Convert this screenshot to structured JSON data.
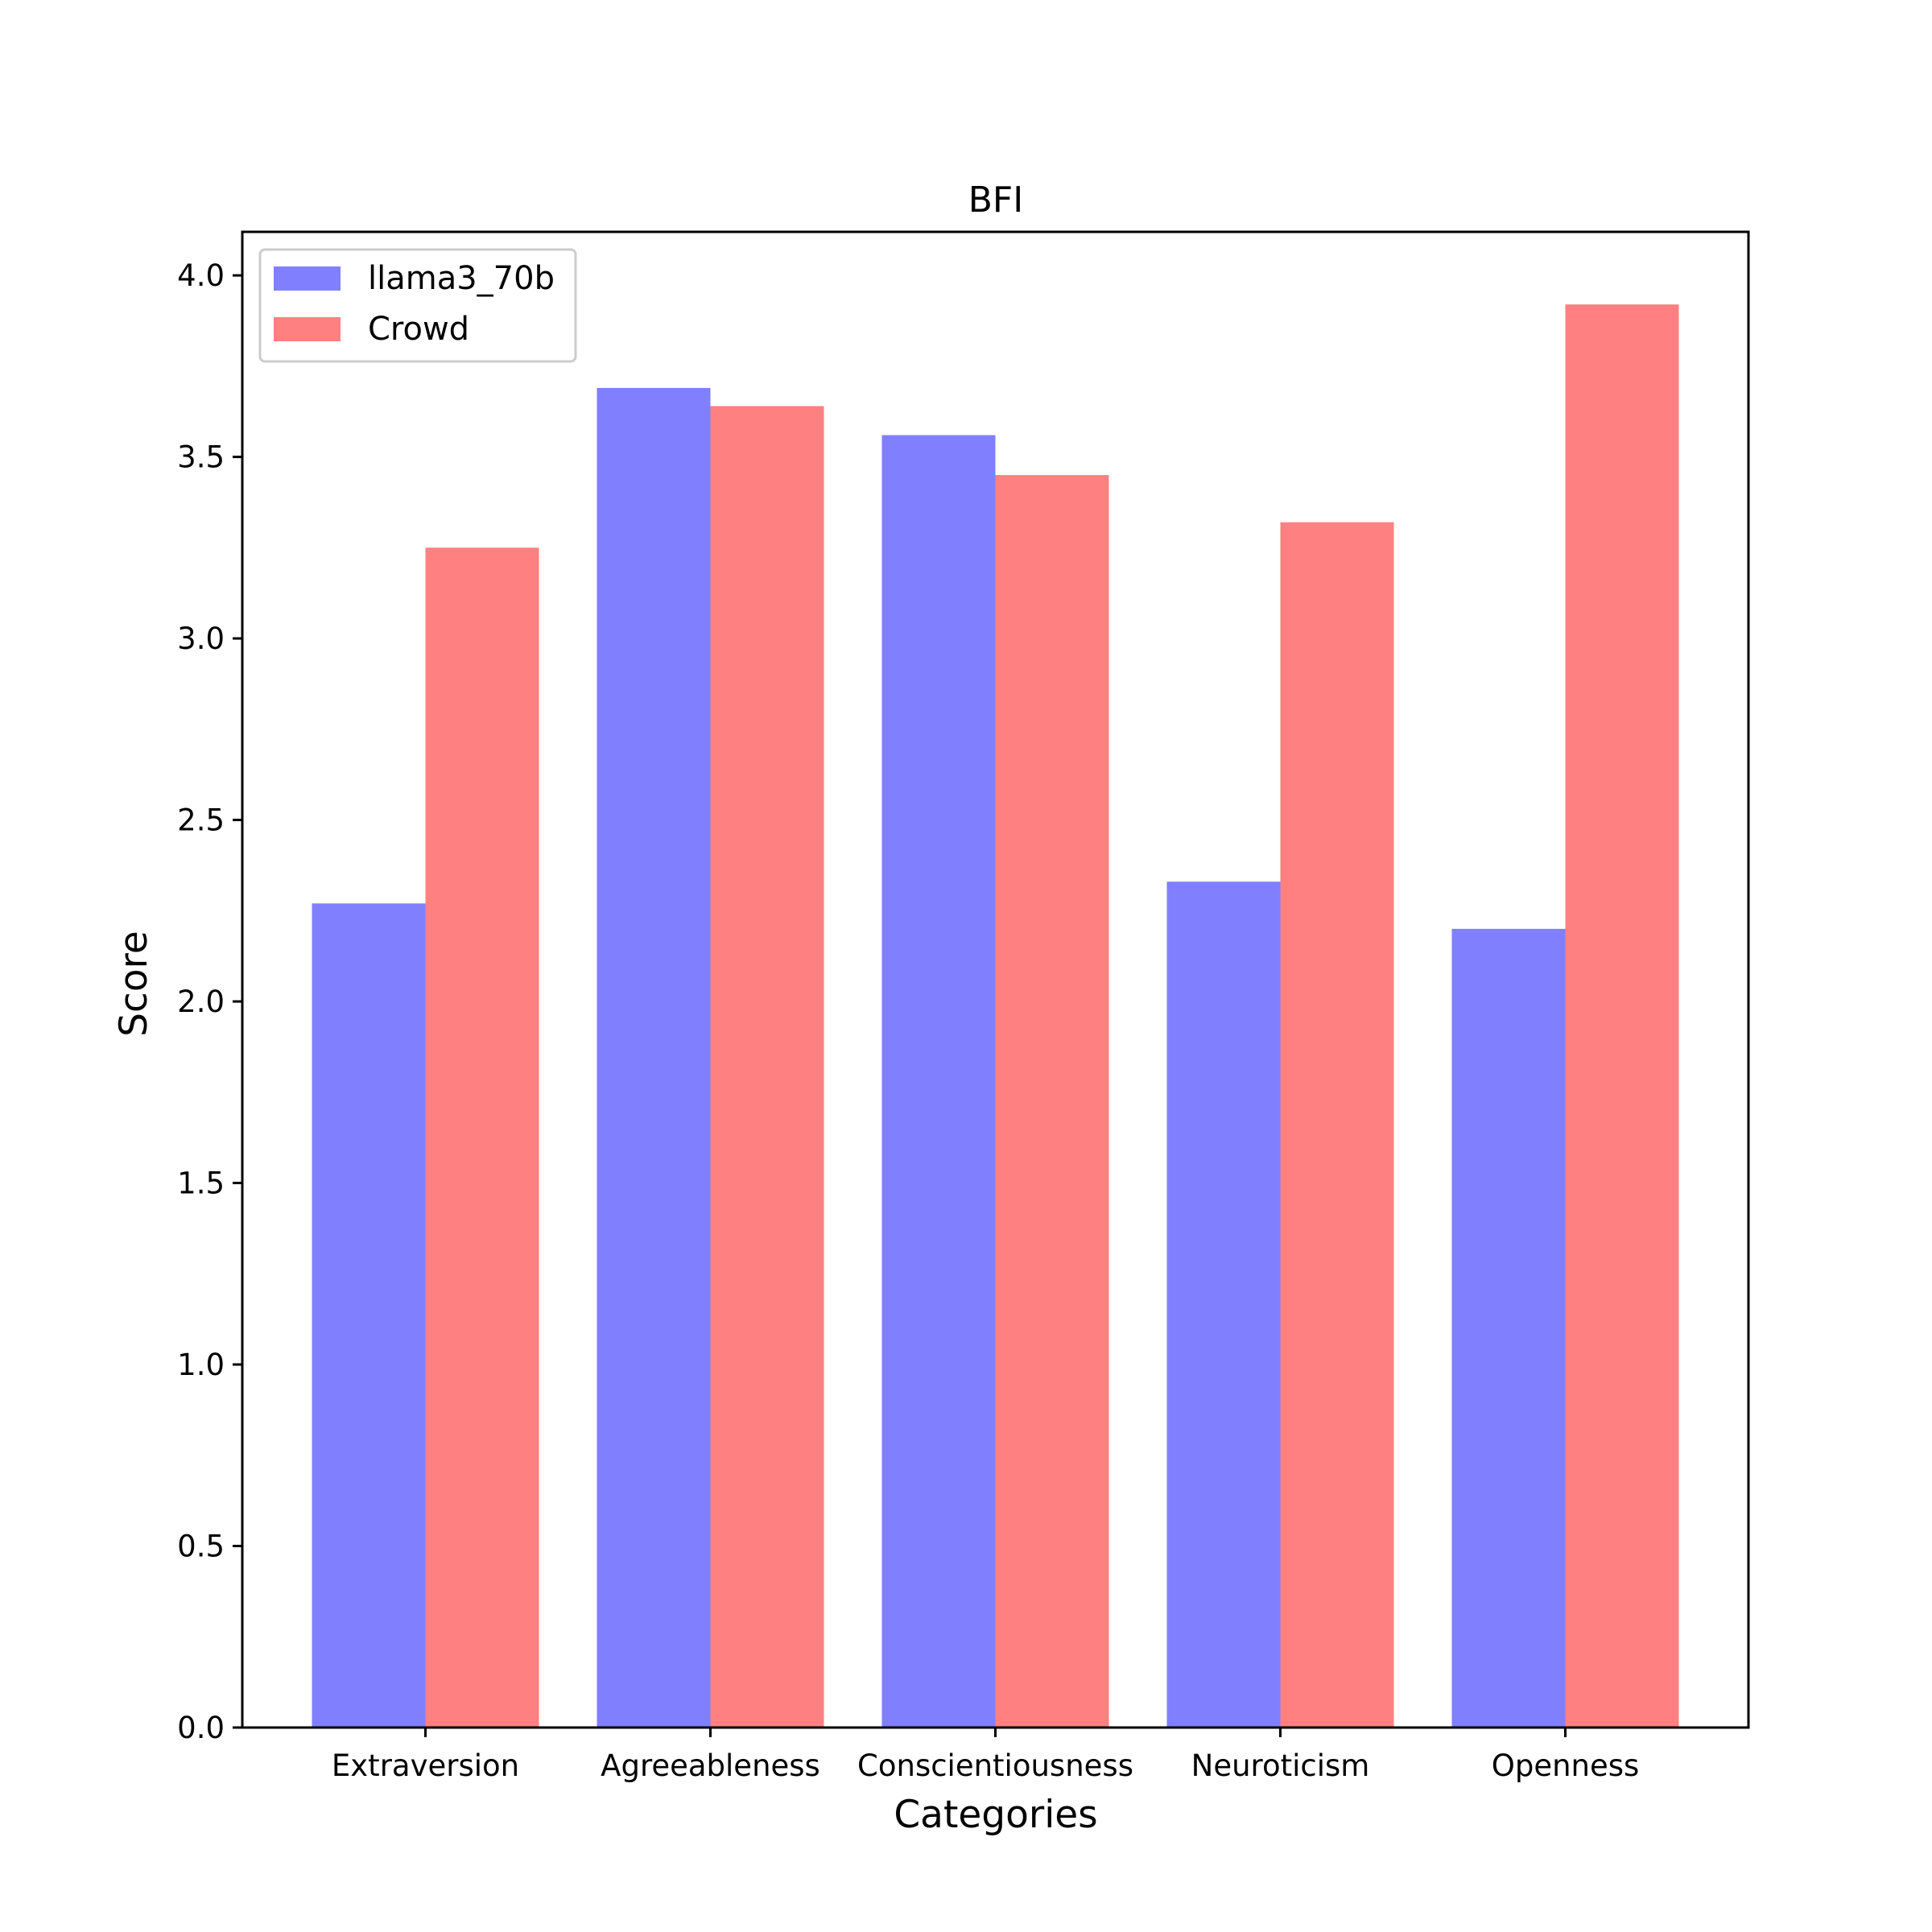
{
  "chart_data": {
    "type": "bar",
    "title": "BFI",
    "xlabel": "Categories",
    "ylabel": "Score",
    "categories": [
      "Extraversion",
      "Agreeableness",
      "Conscientiousness",
      "Neuroticism",
      "Openness"
    ],
    "series": [
      {
        "name": "llama3_70b",
        "color": "#8080ff",
        "values": [
          2.27,
          3.69,
          3.56,
          2.33,
          2.2
        ]
      },
      {
        "name": "Crowd",
        "color": "#ff8080",
        "values": [
          3.25,
          3.64,
          3.45,
          3.32,
          3.92
        ]
      }
    ],
    "ylim": [
      0,
      4.12
    ],
    "yticks": [
      "0.0",
      "0.5",
      "1.0",
      "1.5",
      "2.0",
      "2.5",
      "3.0",
      "3.5",
      "4.0"
    ],
    "grid": false,
    "legend_position": "top-left"
  }
}
